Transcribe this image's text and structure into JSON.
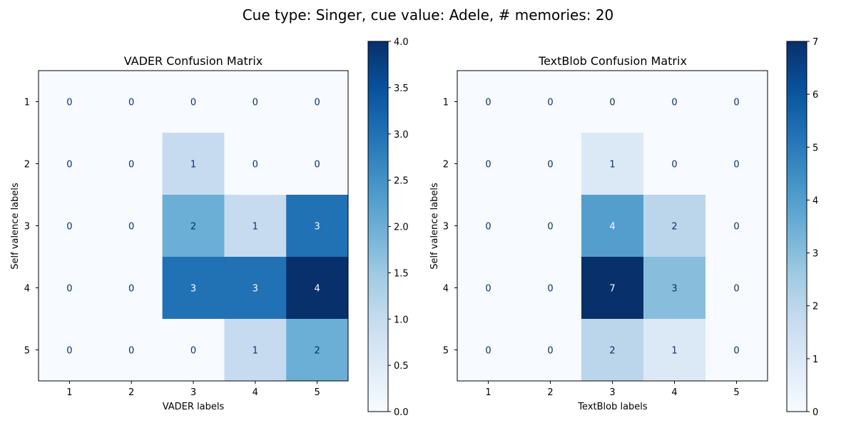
{
  "figure": {
    "suptitle": "Cue type: Singer, cue value: Adele, # memories: 20"
  },
  "chart_data": [
    {
      "type": "heatmap",
      "title": "VADER Confusion Matrix",
      "xlabel": "VADER labels",
      "ylabel": "Self valence labels",
      "x_categories": [
        "1",
        "2",
        "3",
        "4",
        "5"
      ],
      "y_categories": [
        "1",
        "2",
        "3",
        "4",
        "5"
      ],
      "values": [
        [
          0,
          0,
          0,
          0,
          0
        ],
        [
          0,
          0,
          1,
          0,
          0
        ],
        [
          0,
          0,
          2,
          1,
          3
        ],
        [
          0,
          0,
          3,
          3,
          4
        ],
        [
          0,
          0,
          0,
          1,
          2
        ]
      ],
      "colormap": "Blues",
      "colorbar": {
        "range": [
          0,
          4
        ],
        "ticks": [
          "0.0",
          "0.5",
          "1.0",
          "1.5",
          "2.0",
          "2.5",
          "3.0",
          "3.5",
          "4.0"
        ]
      }
    },
    {
      "type": "heatmap",
      "title": "TextBlob Confusion Matrix",
      "xlabel": "TextBlob labels",
      "ylabel": "Self valence labels",
      "x_categories": [
        "1",
        "2",
        "3",
        "4",
        "5"
      ],
      "y_categories": [
        "1",
        "2",
        "3",
        "4",
        "5"
      ],
      "values": [
        [
          0,
          0,
          0,
          0,
          0
        ],
        [
          0,
          0,
          1,
          0,
          0
        ],
        [
          0,
          0,
          4,
          2,
          0
        ],
        [
          0,
          0,
          7,
          3,
          0
        ],
        [
          0,
          0,
          2,
          1,
          0
        ]
      ],
      "colormap": "Blues",
      "colorbar": {
        "range": [
          0,
          7
        ],
        "ticks": [
          "0",
          "1",
          "2",
          "3",
          "4",
          "5",
          "6",
          "7"
        ]
      }
    }
  ]
}
